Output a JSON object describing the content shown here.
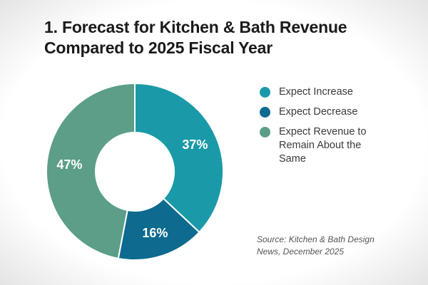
{
  "chart_data": {
    "type": "donut",
    "title": "1. Forecast for Kitchen & Bath Revenue Compared to 2025 Fiscal Year",
    "categories": [
      "Expect Increase",
      "Expect Decrease",
      "Expect Revenue to Remain About the Same"
    ],
    "values": [
      37,
      16,
      47
    ],
    "value_labels": [
      "37%",
      "16%",
      "47%"
    ],
    "colors": [
      "#1a9aa8",
      "#0e6a8e",
      "#5c9e88"
    ],
    "source": "Source: Kitchen & Bath Design News, December 2025"
  }
}
